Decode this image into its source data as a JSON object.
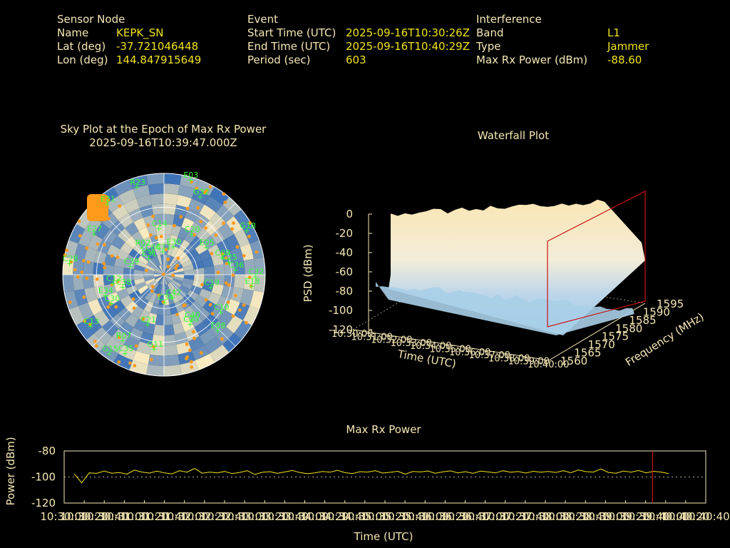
{
  "header": {
    "sensor": {
      "title": "Sensor Node",
      "rows": [
        {
          "label": "Name",
          "value": "KEPK_SN"
        },
        {
          "label": "Lat (deg)",
          "value": "-37.721046448"
        },
        {
          "label": "Lon (deg)",
          "value": "144.847915649"
        }
      ]
    },
    "event": {
      "title": "Event",
      "rows": [
        {
          "label": "Start Time (UTC)",
          "value": "2025-09-16T10:30:26Z"
        },
        {
          "label": "End Time (UTC)",
          "value": "2025-09-16T10:40:29Z"
        },
        {
          "label": "Period (sec)",
          "value": "603"
        }
      ]
    },
    "interference": {
      "title": "Interference",
      "rows": [
        {
          "label": "Band",
          "value": "L1"
        },
        {
          "label": "Type",
          "value": "Jammer"
        },
        {
          "label": "Max Rx Power (dBm)",
          "value": "-88.60"
        }
      ]
    }
  },
  "colors": {
    "text": "#f5e7b3",
    "value": "#f0e21c",
    "satellite": "#33ff33",
    "interference": "#ff9a1a",
    "marker": "#cc1111",
    "skyA": "#3f74b8",
    "skyB": "#fbecc0"
  },
  "chart_data": [
    {
      "type": "scatter",
      "title": "Sky Plot at the Epoch of Max Rx Power",
      "subtitle": "2025-09-16T10:39:47.000Z",
      "satellites": [
        "E03",
        "E30",
        "G32",
        "C20",
        "E05",
        "G18",
        "C25",
        "C09",
        "C36",
        "C32",
        "E18",
        "C19",
        "C10",
        "E08",
        "C40",
        "C42",
        "C20",
        "C34",
        "G11",
        "C21",
        "C35",
        "R07",
        "G15",
        "C13",
        "C30",
        "C38",
        "E34",
        "C12",
        "C28",
        "C39",
        "E27",
        "E31",
        "R02",
        "E21",
        "C04",
        "R23",
        "C11",
        "C14"
      ]
    },
    {
      "type": "area",
      "title": "Waterfall Plot",
      "ylabel": "PSD (dBm)",
      "xlabel": "Time (UTC)",
      "zlabel": "Frequency (MHz)",
      "psd_ticks": [
        "0",
        "-20",
        "-40",
        "-60",
        "-80",
        "-100",
        "-120"
      ],
      "freq_ticks": [
        "1560",
        "1565",
        "1570",
        "1575",
        "1580",
        "1585",
        "1590",
        "1595"
      ],
      "time_ticks": [
        "10:30:00",
        "10:31:00",
        "10:32:00",
        "10:33:00",
        "10:34:00",
        "10:35:00",
        "10:36:00",
        "10:37:00",
        "10:38:00",
        "10:39:00",
        "10:40:00"
      ],
      "jammed_band_mhz": [
        1567,
        1590
      ],
      "floor_dbm": -78,
      "plateau_dbm": -5
    },
    {
      "type": "line",
      "title": "Max Rx Power",
      "xlabel": "Time (UTC)",
      "ylabel": "Power (dBm)",
      "ylim": [
        -120,
        -80
      ],
      "yticks": [
        "-80",
        "-100",
        "-120"
      ],
      "xticks": [
        "10:30:00",
        "10:30:20",
        "10:30:40",
        "10:31:00",
        "10:31:20",
        "10:31:40",
        "10:32:00",
        "10:32:20",
        "10:32:40",
        "10:33:00",
        "10:33:20",
        "10:33:40",
        "10:34:00",
        "10:34:20",
        "10:34:40",
        "10:35:00",
        "10:35:20",
        "10:35:40",
        "10:36:00",
        "10:36:20",
        "10:36:40",
        "10:37:00",
        "10:37:20",
        "10:37:40",
        "10:38:00",
        "10:38:20",
        "10:38:40",
        "10:39:00",
        "10:39:20",
        "10:39:40",
        "10:40:00",
        "10:40:20",
        "10:40:40"
      ],
      "xlim_sec": [
        0,
        640
      ],
      "series": [
        {
          "values": [
            -97.5,
            -104.5,
            -96.8,
            -97.2,
            -95.4,
            -97.1,
            -96.6,
            -97.8,
            -94.7,
            -96.2,
            -97.0,
            -95.5,
            -96.9,
            -97.6,
            -95.2,
            -96.3,
            -93.4,
            -97.1,
            -96.2,
            -96.8,
            -95.7,
            -97.4,
            -96.5,
            -95.2,
            -98.0,
            -96.4,
            -95.9,
            -97.2,
            -96.1,
            -95.0,
            -96.6,
            -97.5,
            -96.9,
            -95.8,
            -96.3,
            -94.9,
            -96.7,
            -97.3,
            -95.9,
            -96.2,
            -95.1,
            -97.0,
            -96.4,
            -95.6,
            -97.8,
            -95.8,
            -96.1,
            -95.4,
            -97.1,
            -96.0,
            -95.3,
            -96.8,
            -95.9,
            -97.2,
            -95.5,
            -96.1,
            -96.9,
            -95.2,
            -96.4,
            -95.7,
            -97.0,
            -95.6,
            -96.3,
            -95.8,
            -96.5,
            -95.1,
            -96.7,
            -94.6,
            -95.9,
            -96.2,
            -93.8,
            -96.5,
            -97.1,
            -95.4,
            -96.3,
            -95.0,
            -96.8,
            -95.6,
            -96.2,
            -97.4
          ]
        }
      ],
      "max_marker_sec": 587
    }
  ]
}
